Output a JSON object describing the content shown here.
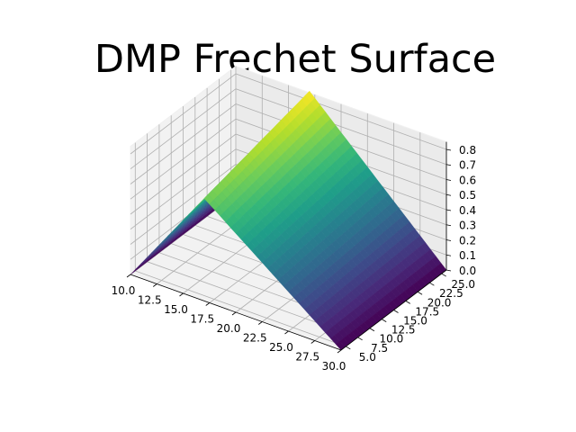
{
  "chart_data": {
    "type": "surface3d",
    "title": "DMP Frechet Surface",
    "colormap": "viridis",
    "grid": true,
    "x": [
      10,
      30
    ],
    "y": [
      4,
      26
    ],
    "zlim": [
      0,
      0.85
    ],
    "x_ticks": [
      "10.0",
      "12.5",
      "15.0",
      "17.5",
      "20.0",
      "22.5",
      "25.0",
      "27.5",
      "30.0"
    ],
    "y_ticks": [
      "5.0",
      "7.5",
      "10.0",
      "12.5",
      "15.0",
      "17.5",
      "20.0",
      "22.5",
      "25.0"
    ],
    "z_ticks": [
      "0.0",
      "0.1",
      "0.2",
      "0.3",
      "0.4",
      "0.5",
      "0.6",
      "0.7",
      "0.8"
    ],
    "ridge_x": 17,
    "peak_z": {
      "at_y_start": 0.68,
      "at_y_end": 0.86
    },
    "edge_z": {
      "x_start": 0.0,
      "x_end": 0.0
    }
  }
}
